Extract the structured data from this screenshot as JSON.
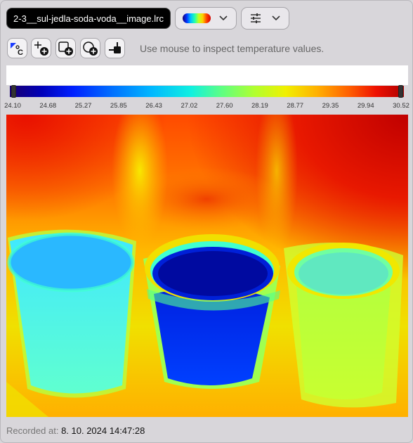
{
  "toolbar": {
    "file_name": "2-3__sul-jedla-soda-voda__image.lrc",
    "palette_dropdown_icon": "rainbow-palette-icon",
    "settings_dropdown_icon": "sliders-icon"
  },
  "tools": [
    {
      "name": "temperature-unit-icon"
    },
    {
      "name": "add-point-icon"
    },
    {
      "name": "add-rectangle-icon"
    },
    {
      "name": "add-ellipse-icon"
    },
    {
      "name": "add-line-icon"
    }
  ],
  "hint": "Use mouse to inspect temperature values.",
  "scale": {
    "ticks": [
      "24.10",
      "24.68",
      "25.27",
      "25.85",
      "26.43",
      "27.02",
      "27.60",
      "28.19",
      "28.77",
      "29.35",
      "29.94",
      "30.52"
    ],
    "min": 24.1,
    "max": 30.52
  },
  "footer": {
    "label": "Recorded at:",
    "value": "8. 10. 2024 14:47:28"
  },
  "colors": {
    "background": "#d8d6da",
    "file_pill": "#000000",
    "hot": "#d81000",
    "cold": "#0010c0"
  }
}
